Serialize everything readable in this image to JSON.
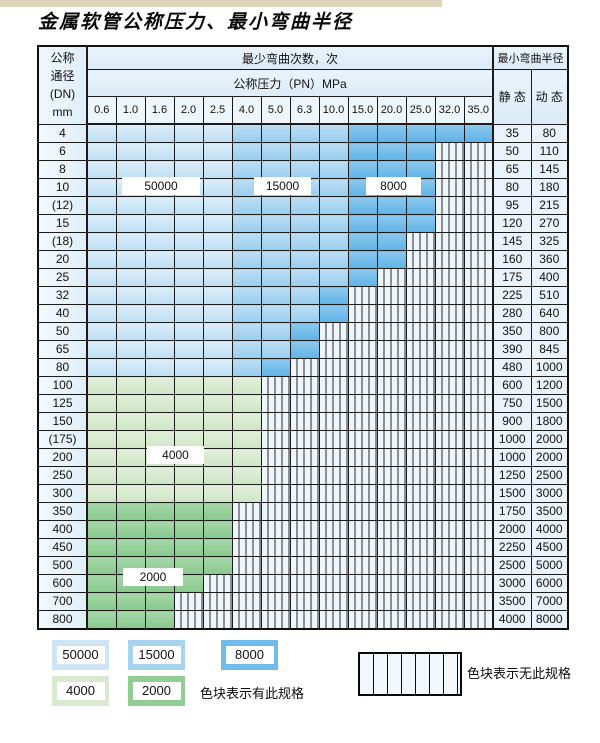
{
  "title": "金属软管公称压力、最小弯曲半径",
  "colors": {
    "c50000": "#cde5f6",
    "c15000": "#a6d3f0",
    "c8000": "#6fbce8",
    "c4000": "#d8e9d0",
    "c2000": "#93cd96",
    "hatch_bg": "#eef5fb",
    "border": "#1b1b1b"
  },
  "table": {
    "header": {
      "dn_lines": [
        "公称",
        "通径",
        "(DN)",
        "mm"
      ],
      "bend_cycles": "最少弯曲次数，次",
      "pressure": "公称压力（PN）MPa",
      "pressures": [
        "0.6",
        "1.0",
        "1.6",
        "2.0",
        "2.5",
        "4.0",
        "5.0",
        "6.3",
        "10.0",
        "15.0",
        "20.0",
        "25.0",
        "32.0",
        "35.0"
      ],
      "min_radius": "最小弯曲半径",
      "static": "静 态",
      "dynamic": "动 态"
    },
    "cell_codes": {
      "A": "50000 cycles",
      "B": "15000 cycles",
      "C": "8000 cycles",
      "D": "4000 cycles",
      "E": "2000 cycles",
      "N": "no spec (hatched)"
    },
    "rows": [
      {
        "dn": "4",
        "cells": [
          "A",
          "A",
          "A",
          "A",
          "A",
          "B",
          "B",
          "B",
          "B",
          "C",
          "C",
          "C",
          "C",
          "C"
        ],
        "static": "35",
        "dynamic": "80"
      },
      {
        "dn": "6",
        "cells": [
          "A",
          "A",
          "A",
          "A",
          "A",
          "B",
          "B",
          "B",
          "B",
          "C",
          "C",
          "C",
          "N",
          "N"
        ],
        "static": "50",
        "dynamic": "110"
      },
      {
        "dn": "8",
        "cells": [
          "A",
          "A",
          "A",
          "A",
          "A",
          "B",
          "B",
          "B",
          "B",
          "C",
          "C",
          "C",
          "N",
          "N"
        ],
        "static": "65",
        "dynamic": "145"
      },
      {
        "dn": "10",
        "cells": [
          "A",
          "A",
          "A",
          "A",
          "A",
          "B",
          "B",
          "B",
          "B",
          "C",
          "C",
          "C",
          "N",
          "N"
        ],
        "static": "80",
        "dynamic": "180"
      },
      {
        "dn": "(12)",
        "cells": [
          "A",
          "A",
          "A",
          "A",
          "A",
          "B",
          "B",
          "B",
          "B",
          "C",
          "C",
          "C",
          "N",
          "N"
        ],
        "static": "95",
        "dynamic": "215"
      },
      {
        "dn": "15",
        "cells": [
          "A",
          "A",
          "A",
          "A",
          "A",
          "B",
          "B",
          "B",
          "B",
          "C",
          "C",
          "C",
          "N",
          "N"
        ],
        "static": "120",
        "dynamic": "270"
      },
      {
        "dn": "(18)",
        "cells": [
          "A",
          "A",
          "A",
          "A",
          "A",
          "B",
          "B",
          "B",
          "B",
          "C",
          "C",
          "N",
          "N",
          "N"
        ],
        "static": "145",
        "dynamic": "325"
      },
      {
        "dn": "20",
        "cells": [
          "A",
          "A",
          "A",
          "A",
          "A",
          "B",
          "B",
          "B",
          "B",
          "C",
          "C",
          "N",
          "N",
          "N"
        ],
        "static": "160",
        "dynamic": "360"
      },
      {
        "dn": "25",
        "cells": [
          "A",
          "A",
          "A",
          "A",
          "A",
          "B",
          "B",
          "B",
          "B",
          "C",
          "N",
          "N",
          "N",
          "N"
        ],
        "static": "175",
        "dynamic": "400"
      },
      {
        "dn": "32",
        "cells": [
          "A",
          "A",
          "A",
          "A",
          "A",
          "B",
          "B",
          "B",
          "C",
          "N",
          "N",
          "N",
          "N",
          "N"
        ],
        "static": "225",
        "dynamic": "510"
      },
      {
        "dn": "40",
        "cells": [
          "A",
          "A",
          "A",
          "A",
          "A",
          "B",
          "B",
          "B",
          "C",
          "N",
          "N",
          "N",
          "N",
          "N"
        ],
        "static": "280",
        "dynamic": "640"
      },
      {
        "dn": "50",
        "cells": [
          "A",
          "A",
          "A",
          "A",
          "A",
          "B",
          "B",
          "C",
          "N",
          "N",
          "N",
          "N",
          "N",
          "N"
        ],
        "static": "350",
        "dynamic": "800"
      },
      {
        "dn": "65",
        "cells": [
          "A",
          "A",
          "A",
          "A",
          "A",
          "B",
          "B",
          "C",
          "N",
          "N",
          "N",
          "N",
          "N",
          "N"
        ],
        "static": "390",
        "dynamic": "845"
      },
      {
        "dn": "80",
        "cells": [
          "A",
          "A",
          "A",
          "A",
          "A",
          "B",
          "C",
          "N",
          "N",
          "N",
          "N",
          "N",
          "N",
          "N"
        ],
        "static": "480",
        "dynamic": "1000"
      },
      {
        "dn": "100",
        "cells": [
          "D",
          "D",
          "D",
          "D",
          "D",
          "D",
          "N",
          "N",
          "N",
          "N",
          "N",
          "N",
          "N",
          "N"
        ],
        "static": "600",
        "dynamic": "1200"
      },
      {
        "dn": "125",
        "cells": [
          "D",
          "D",
          "D",
          "D",
          "D",
          "D",
          "N",
          "N",
          "N",
          "N",
          "N",
          "N",
          "N",
          "N"
        ],
        "static": "750",
        "dynamic": "1500"
      },
      {
        "dn": "150",
        "cells": [
          "D",
          "D",
          "D",
          "D",
          "D",
          "D",
          "N",
          "N",
          "N",
          "N",
          "N",
          "N",
          "N",
          "N"
        ],
        "static": "900",
        "dynamic": "1800"
      },
      {
        "dn": "(175)",
        "cells": [
          "D",
          "D",
          "D",
          "D",
          "D",
          "D",
          "N",
          "N",
          "N",
          "N",
          "N",
          "N",
          "N",
          "N"
        ],
        "static": "1000",
        "dynamic": "2000"
      },
      {
        "dn": "200",
        "cells": [
          "D",
          "D",
          "D",
          "D",
          "D",
          "D",
          "N",
          "N",
          "N",
          "N",
          "N",
          "N",
          "N",
          "N"
        ],
        "static": "1000",
        "dynamic": "2000"
      },
      {
        "dn": "250",
        "cells": [
          "D",
          "D",
          "D",
          "D",
          "D",
          "D",
          "N",
          "N",
          "N",
          "N",
          "N",
          "N",
          "N",
          "N"
        ],
        "static": "1250",
        "dynamic": "2500"
      },
      {
        "dn": "300",
        "cells": [
          "D",
          "D",
          "D",
          "D",
          "D",
          "D",
          "N",
          "N",
          "N",
          "N",
          "N",
          "N",
          "N",
          "N"
        ],
        "static": "1500",
        "dynamic": "3000"
      },
      {
        "dn": "350",
        "cells": [
          "E",
          "E",
          "E",
          "E",
          "E",
          "N",
          "N",
          "N",
          "N",
          "N",
          "N",
          "N",
          "N",
          "N"
        ],
        "static": "1750",
        "dynamic": "3500"
      },
      {
        "dn": "400",
        "cells": [
          "E",
          "E",
          "E",
          "E",
          "E",
          "N",
          "N",
          "N",
          "N",
          "N",
          "N",
          "N",
          "N",
          "N"
        ],
        "static": "2000",
        "dynamic": "4000"
      },
      {
        "dn": "450",
        "cells": [
          "E",
          "E",
          "E",
          "E",
          "E",
          "N",
          "N",
          "N",
          "N",
          "N",
          "N",
          "N",
          "N",
          "N"
        ],
        "static": "2250",
        "dynamic": "4500"
      },
      {
        "dn": "500",
        "cells": [
          "E",
          "E",
          "E",
          "E",
          "E",
          "N",
          "N",
          "N",
          "N",
          "N",
          "N",
          "N",
          "N",
          "N"
        ],
        "static": "2500",
        "dynamic": "5000"
      },
      {
        "dn": "600",
        "cells": [
          "E",
          "E",
          "E",
          "E",
          "N",
          "N",
          "N",
          "N",
          "N",
          "N",
          "N",
          "N",
          "N",
          "N"
        ],
        "static": "3000",
        "dynamic": "6000"
      },
      {
        "dn": "700",
        "cells": [
          "E",
          "E",
          "E",
          "N",
          "N",
          "N",
          "N",
          "N",
          "N",
          "N",
          "N",
          "N",
          "N",
          "N"
        ],
        "static": "3500",
        "dynamic": "7000"
      },
      {
        "dn": "800",
        "cells": [
          "E",
          "E",
          "E",
          "N",
          "N",
          "N",
          "N",
          "N",
          "N",
          "N",
          "N",
          "N",
          "N",
          "N"
        ],
        "static": "4000",
        "dynamic": "8000"
      }
    ]
  },
  "annotations": {
    "a50000": "50000",
    "a15000": "15000",
    "a8000": "8000",
    "a4000": "4000",
    "a2000": "2000"
  },
  "legend": {
    "items": [
      {
        "label": "50000"
      },
      {
        "label": "15000"
      },
      {
        "label": "8000"
      },
      {
        "label": "4000"
      },
      {
        "label": "2000"
      }
    ],
    "has_spec_note": "色块表示有此规格",
    "no_spec_note": "色块表示无此规格"
  }
}
